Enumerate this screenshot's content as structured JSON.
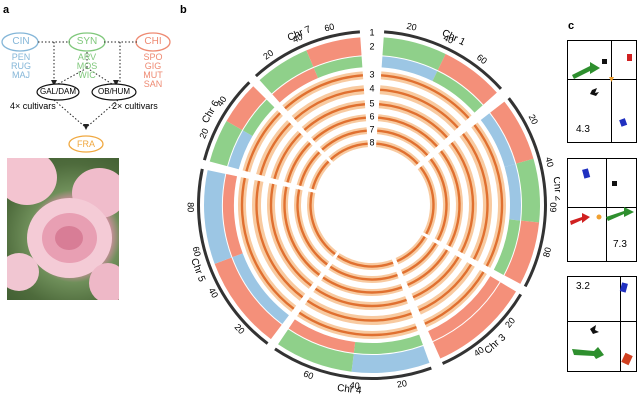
{
  "panel_a": {
    "letter": "a",
    "groups": [
      {
        "name": "CIN",
        "color": "#84b6d8",
        "members": [
          "PEN",
          "RUG",
          "MAJ"
        ]
      },
      {
        "name": "SYN",
        "color": "#80c87c",
        "members": [
          "ARV",
          "MOS",
          "WIC"
        ]
      },
      {
        "name": "CHI",
        "color": "#ee8a72",
        "members": [
          "SPO",
          "GIG",
          "MUT",
          "SAN"
        ]
      }
    ],
    "hybrids": [
      {
        "name": "GAL/DAM",
        "note": "4× cultivars"
      },
      {
        "name": "OB/HUM",
        "note": "2× cultivars"
      }
    ],
    "result": {
      "name": "FRA",
      "color": "#f0a840"
    }
  },
  "panel_b": {
    "letter": "b",
    "chromosomes": [
      {
        "label": "Chr 1",
        "ticks": [
          "20",
          "40",
          "60"
        ]
      },
      {
        "label": "Chr 2",
        "ticks": [
          "20",
          "40",
          "60",
          "80"
        ]
      },
      {
        "label": "Chr 3",
        "ticks": [
          "20",
          "40"
        ]
      },
      {
        "label": "Chr 4",
        "ticks": [
          "20",
          "40",
          "60"
        ]
      },
      {
        "label": "Chr 5",
        "ticks": [
          "20",
          "40",
          "60",
          "80"
        ]
      },
      {
        "label": "Chr 6",
        "ticks": [
          "20",
          "40"
        ]
      },
      {
        "label": "Chr 7",
        "ticks": [
          "20",
          "40",
          "60"
        ]
      }
    ],
    "track_labels": [
      "1",
      "2",
      "3",
      "4",
      "5",
      "6",
      "7",
      "8"
    ],
    "colors": {
      "chi": "#f4907a",
      "syn": "#8fd08a",
      "cin": "#9cc6e4",
      "track": "#f8caa0",
      "mark": "#e07030",
      "ideogram": "#333333"
    }
  },
  "panel_c": {
    "letter": "c",
    "cells": [
      {
        "value": "4.3"
      },
      {
        "value": "7.3"
      },
      {
        "value": "3.2"
      }
    ],
    "colors": {
      "green": "#2e8f2e",
      "red": "#d02020",
      "blue": "#2030c0",
      "black": "#111111",
      "orange": "#f0a030"
    }
  }
}
